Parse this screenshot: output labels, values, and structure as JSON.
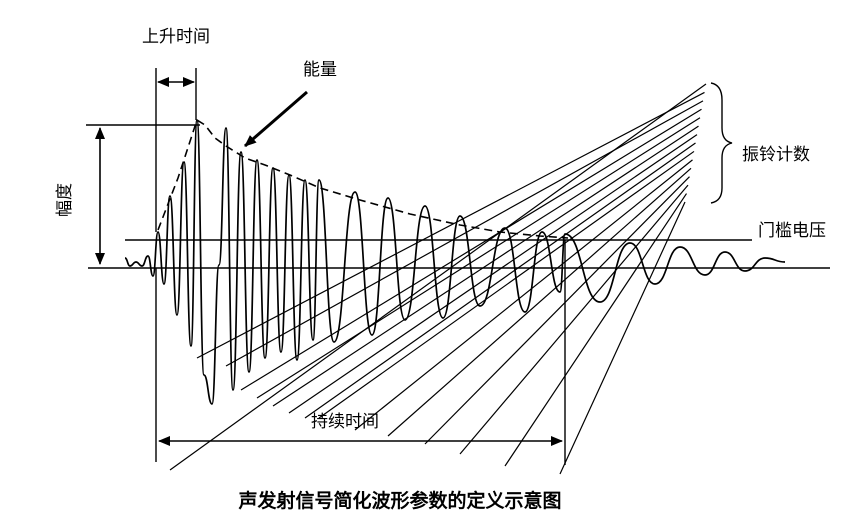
{
  "labels": {
    "rise_time": "上升时间",
    "energy": "能量",
    "ring_count": "振铃计数",
    "amplitude": "幅度",
    "threshold_voltage": "门槛电压",
    "duration": "持续时间"
  },
  "caption": "声发射信号简化波形参数的定义示意图"
}
